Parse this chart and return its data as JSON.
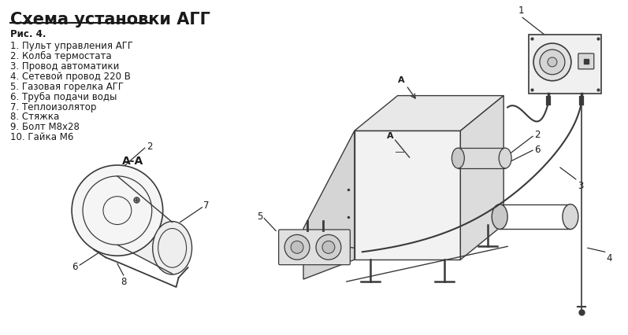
{
  "title": "Схема установки АГГ",
  "fig_label": "Рис. 4.",
  "items": [
    "1. Пульт управления АГГ",
    "2. Колба термостата",
    "3. Провод автоматики",
    "4. Сетевой провод 220 В",
    "5. Газовая горелка АГГ",
    "6. Труба подачи воды",
    "7. Теплоизолятор",
    "8. Стяжка",
    "9. Болт М8х28",
    "10. Гайка М6"
  ],
  "section_label": "А-А",
  "bg_color": "#ffffff",
  "text_color": "#1a1a1a",
  "line_color": "#3a3a3a",
  "title_fontsize": 15,
  "label_fontsize": 8.5,
  "fig_width": 7.97,
  "fig_height": 4.26
}
